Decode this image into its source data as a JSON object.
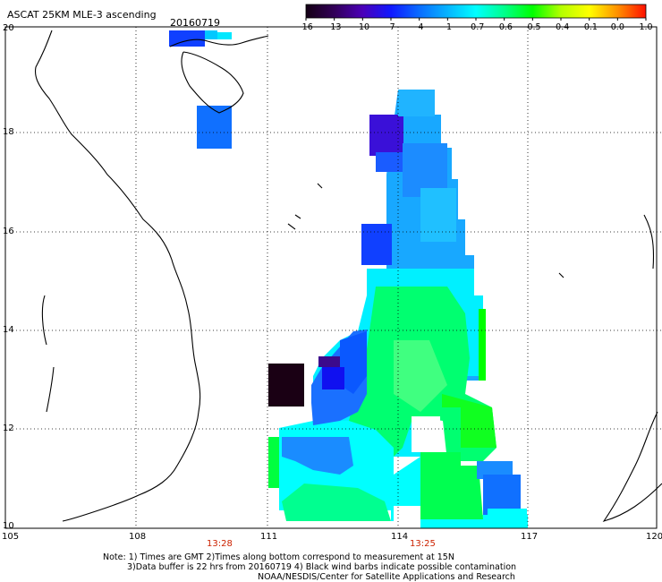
{
  "header": {
    "title": "ASCAT 25KM MLE-3 ascending",
    "date": "20160719"
  },
  "colorbar": {
    "labels": [
      "-16",
      "-13",
      "-10",
      "-7",
      "-4",
      "-1",
      "-0.7",
      "-0.6",
      "-0.5",
      "-0.4",
      "-0.1",
      "0.0",
      "1.0"
    ],
    "colors": [
      "#140014",
      "#320058",
      "#4b00b8",
      "#1018ff",
      "#0a6cff",
      "#06b4ff",
      "#00ffff",
      "#00ff8c",
      "#00ff00",
      "#b4ff00",
      "#ffff00",
      "#ff9000",
      "#ff1000"
    ]
  },
  "axes": {
    "lon_labels": [
      "105",
      "108",
      "111",
      "114",
      "117",
      "120"
    ],
    "lat_labels": [
      "20",
      "18",
      "16",
      "14",
      "12",
      "10"
    ]
  },
  "times": [
    "13:28",
    "13:25"
  ],
  "notes": [
    "Note: 1) Times are GMT 2)Times along bottom correspond to measurement at 15N",
    "3)Data buffer is 22 hrs from 20160719 4) Black wind barbs indicate possible contamination",
    "NOAA/NESDIS/Center for Satellite Applications and Research"
  ]
}
